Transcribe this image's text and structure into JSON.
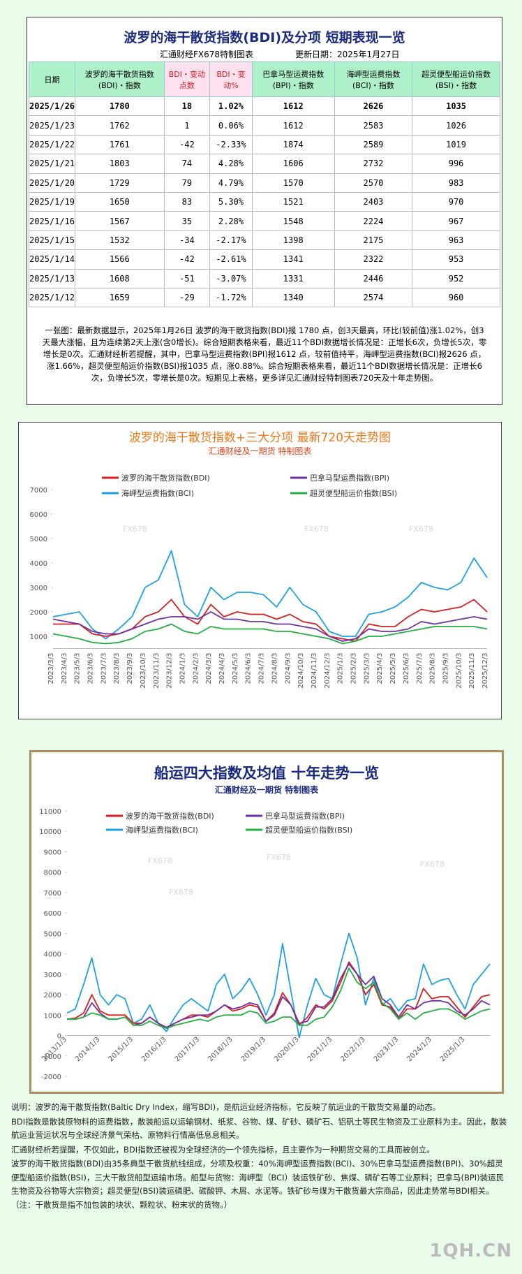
{
  "table": {
    "title": "波罗的海干散货指数(BDI)及分项  短期表现一览",
    "source": "汇通财经FX678特制图表",
    "update_date": "更新日期：2025年1月27日",
    "headers": [
      "日期",
      "波罗的海干散货指数(BDI)・指数",
      "BDI・变动点数",
      "BDI・变动%",
      "巴拿马型运费指数(BPI)・指数",
      "海岬型运费指数(BCI)・指数",
      "超灵便型船运价指数(BSI)・指数"
    ],
    "rows": [
      [
        "2025/1/26",
        "1780",
        "18",
        "1.02%",
        "1612",
        "2626",
        "1035"
      ],
      [
        "2025/1/23",
        "1762",
        "1",
        "0.06%",
        "1612",
        "2583",
        "1026"
      ],
      [
        "2025/1/22",
        "1761",
        "-42",
        "-2.33%",
        "1874",
        "2589",
        "1019"
      ],
      [
        "2025/1/21",
        "1803",
        "74",
        "4.28%",
        "1606",
        "2732",
        "996"
      ],
      [
        "2025/1/20",
        "1729",
        "79",
        "4.79%",
        "1570",
        "2570",
        "983"
      ],
      [
        "2025/1/19",
        "1650",
        "83",
        "5.30%",
        "1521",
        "2403",
        "970"
      ],
      [
        "2025/1/16",
        "1567",
        "35",
        "2.28%",
        "1548",
        "2224",
        "967"
      ],
      [
        "2025/1/15",
        "1532",
        "-34",
        "-2.17%",
        "1398",
        "2175",
        "963"
      ],
      [
        "2025/1/14",
        "1566",
        "-42",
        "-2.61%",
        "1341",
        "2322",
        "953"
      ],
      [
        "2025/1/13",
        "1608",
        "-51",
        "-3.07%",
        "1331",
        "2446",
        "952"
      ],
      [
        "2025/1/12",
        "1659",
        "-29",
        "-1.72%",
        "1340",
        "2574",
        "960"
      ]
    ]
  },
  "summary": "一张图：最新数据显示，2025年1月26日 波罗的海干散货指数(BDI)报 1780 点，创3天最高，环比(较前值)涨1.02%，创3天最大涨幅，且为连续第2天上涨(含0增长)。综合短期表格来看，最近11个BDI数据增长情况是：正增长6次，负增长5次，零增长是0次。汇通财经析若提醒，其中，巴拿马型运费指数(BPI)报1612 点，较前值持平，海岬型运费指数(BCI)报2626 点，涨1.66%，超灵便型船运价指数(BSI)报1035 点，涨0.88%。综合短期表格来看，最近11个BDI数据增长情况是：正增长6次，负增长5次，零增长是0次。短期见上表格，更多详见汇通财经特制图表720天及十年走势图。",
  "chart_data": [
    {
      "type": "line",
      "title": "波罗的海干散货指数+三大分项  最新720天走势图",
      "subtitle": "汇通财经及一期货  特制图表",
      "watermark": "FX678",
      "legend": "top",
      "grid": false,
      "categories": [
        "2023/3/3",
        "2023/4/3",
        "2023/5/3",
        "2023/6/3",
        "2023/7/3",
        "2023/8/3",
        "2023/9/3",
        "2023/10/3",
        "2023/11/3",
        "2023/12/3",
        "2024/1/3",
        "2024/2/3",
        "2024/3/3",
        "2024/4/3",
        "2024/5/3",
        "2024/6/3",
        "2024/7/3",
        "2024/8/3",
        "2024/9/3",
        "2024/10/3",
        "2024/11/3",
        "2024/12/3",
        "2025/1/3",
        "2025/2/3",
        "2025/3/3",
        "2025/4/3",
        "2025/5/3",
        "2025/6/3",
        "2025/7/3",
        "2025/8/3",
        "2025/9/3",
        "2025/10/3",
        "2025/11/3",
        "2025/12/3"
      ],
      "ylim": [
        500,
        7000
      ],
      "yticks": [
        1000,
        2000,
        3000,
        4000,
        5000,
        6000,
        7000
      ],
      "series": [
        {
          "name": "波罗的海干散货指数(BDI)",
          "color": "#d81e1e",
          "values": [
            1500,
            1500,
            1500,
            1100,
            1000,
            1100,
            1300,
            1800,
            2000,
            2500,
            1800,
            1500,
            2300,
            1800,
            2000,
            1900,
            1900,
            1700,
            1900,
            1600,
            1500,
            1000,
            900,
            800,
            1500,
            1400,
            1400,
            1800,
            2100,
            2000,
            2100,
            2200,
            2500,
            2000
          ]
        },
        {
          "name": "巴拿马型运费指数(BPI)",
          "color": "#7030a0",
          "values": [
            1700,
            1600,
            1500,
            1200,
            1100,
            1100,
            1300,
            1500,
            1700,
            1800,
            1800,
            1700,
            2000,
            1700,
            1700,
            1600,
            1600,
            1500,
            1500,
            1400,
            1300,
            1000,
            800,
            900,
            1300,
            1200,
            1200,
            1300,
            1600,
            1500,
            1600,
            1700,
            1800,
            1700
          ]
        },
        {
          "name": "海岬型运费指数(BCI)",
          "color": "#1ea0e8",
          "values": [
            1800,
            1900,
            2000,
            1300,
            900,
            1300,
            1800,
            3000,
            3300,
            4500,
            2300,
            1800,
            3000,
            2500,
            2800,
            2800,
            2700,
            2200,
            3000,
            2300,
            2000,
            1200,
            1000,
            1000,
            1900,
            2000,
            2200,
            2600,
            3200,
            3000,
            2900,
            3200,
            4200,
            3400
          ]
        },
        {
          "name": "超灵便型船运价指数(BSI)",
          "color": "#22b040",
          "values": [
            1100,
            1000,
            900,
            750,
            700,
            750,
            900,
            1200,
            1300,
            1500,
            1200,
            1100,
            1400,
            1300,
            1300,
            1300,
            1300,
            1200,
            1200,
            1100,
            1000,
            900,
            700,
            800,
            1000,
            1000,
            1100,
            1200,
            1300,
            1400,
            1400,
            1400,
            1400,
            1300
          ]
        }
      ]
    },
    {
      "type": "line",
      "title": "船运四大指数及均值 十年走势一览",
      "subtitle": "汇通财经及一期货 特制图表",
      "watermark": "FX678",
      "legend": "top",
      "grid": false,
      "categories": [
        "2013/1/3",
        null,
        null,
        null,
        "2014/1/3",
        null,
        null,
        null,
        "2015/1/3",
        null,
        null,
        null,
        "2016/1/3",
        null,
        null,
        null,
        "2017/1/3",
        null,
        null,
        null,
        "2018/1/3",
        null,
        null,
        null,
        "2019/1/3",
        null,
        null,
        null,
        "2020/1/3",
        null,
        null,
        null,
        "2021/1/3",
        null,
        null,
        null,
        "2022/1/3",
        null,
        null,
        null,
        "2023/1/3",
        null,
        null,
        null,
        "2024/1/3",
        null,
        null,
        null,
        "2025/1/3",
        null,
        null,
        null
      ],
      "ylim": [
        -2000,
        11000
      ],
      "yticks": [
        -2000,
        -1000,
        0,
        1000,
        2000,
        3000,
        4000,
        5000,
        6000,
        7000,
        8000,
        9000,
        10000,
        11000
      ],
      "series": [
        {
          "name": "波罗的海干散货指数(BDI)",
          "color": "#d81e1e",
          "values": [
            800,
            850,
            1100,
            2000,
            1200,
            1000,
            1000,
            1000,
            600,
            600,
            900,
            600,
            350,
            600,
            800,
            1000,
            1000,
            900,
            1200,
            1500,
            1200,
            1300,
            1500,
            1400,
            700,
            1100,
            2100,
            1500,
            500,
            900,
            1500,
            1300,
            1700,
            2600,
            3600,
            3000,
            2000,
            2500,
            1500,
            1400,
            800,
            1300,
            1300,
            2300,
            1800,
            1900,
            1900,
            1400,
            900,
            1400,
            1900,
            2000
          ]
        },
        {
          "name": "巴拿马型运费指数(BPI)",
          "color": "#7030a0",
          "values": [
            800,
            800,
            900,
            1600,
            1100,
            800,
            800,
            900,
            500,
            600,
            900,
            600,
            400,
            600,
            800,
            900,
            1000,
            1000,
            1200,
            1500,
            1300,
            1400,
            1600,
            1500,
            700,
            1000,
            1900,
            1500,
            600,
            700,
            1400,
            1400,
            1800,
            2800,
            3500,
            3000,
            2500,
            2900,
            1800,
            1500,
            900,
            1500,
            1300,
            1600,
            1700,
            1700,
            1600,
            1200,
            1000,
            1300,
            1700,
            1500
          ]
        },
        {
          "name": "海岬型运费指数(BCI)",
          "color": "#1ea0e8",
          "values": [
            1100,
            1300,
            2500,
            3800,
            2000,
            1500,
            2000,
            1800,
            600,
            800,
            1500,
            600,
            200,
            900,
            1500,
            1800,
            1500,
            1200,
            2500,
            3000,
            1800,
            2200,
            2800,
            2000,
            1000,
            2000,
            4500,
            2200,
            -100,
            1500,
            2800,
            2000,
            1800,
            3500,
            5000,
            3800,
            1500,
            2800,
            1500,
            1800,
            1200,
            1700,
            1800,
            3500,
            2500,
            2700,
            2800,
            2000,
            1300,
            2500,
            3000,
            3500
          ]
        },
        {
          "name": "超灵便型船运价指数(BSI)",
          "color": "#22b040",
          "values": [
            800,
            800,
            900,
            1100,
            1000,
            800,
            800,
            900,
            500,
            500,
            700,
            500,
            350,
            500,
            600,
            700,
            800,
            700,
            900,
            1000,
            1000,
            1000,
            1200,
            1100,
            600,
            700,
            900,
            900,
            500,
            500,
            800,
            900,
            1400,
            2200,
            3300,
            2600,
            2300,
            2600,
            1600,
            1300,
            800,
            1100,
            800,
            1100,
            1200,
            1300,
            1300,
            1100,
            800,
            1000,
            1200,
            1300
          ]
        }
      ]
    }
  ],
  "notes": [
    "说明：波罗的海干散货指数(Baltic Dry Index，缩写BDI)，是航运业经济指标，它反映了航运业的干散货交易量的动态。",
    "BDI指数是散装原物料的运费指数，散装船运以运输钢材、纸浆、谷物、煤、矿砂、磷矿石、铝矾土等民生物资及工业原料为主。因此，散装航运业营运状况与全球经济景气荣枯、原物料行情高低息息相关。",
    "汇通财经析若提醒，不仅如此，BDI指数还被视为全球经济的一个领先指标，且主要作为一种期货交易的工具而被创立。",
    "波罗的海干散货指数(BDI)由35条典型干散货航线组成，分项及权重：40%海岬型运费指数(BCI)、30%巴拿马型运费指数(BPI)、30%超灵便型船运价指数(BSI)，三大干散货船型运输市场。船型与货物：海岬型（BCI）装运铁矿砂、焦煤、磷矿石等工业原料；巴拿马(BPI)装运民生物资及谷物等大宗物资；超灵便型(BSI)装运磷肥、碳酸钾、木屑、水泥等。铁矿砂与煤为干散货最大宗商品，因此走势常与BDI相关。（注：干散货是指不加包装的块状、颗粒状、粉末状的货物。）"
  ],
  "brand": "1QH.CN"
}
